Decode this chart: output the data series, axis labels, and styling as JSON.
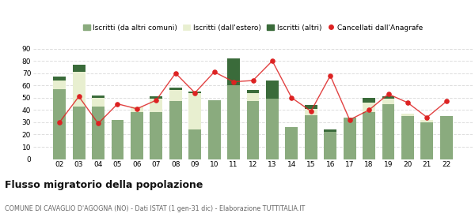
{
  "years": [
    "02",
    "03",
    "04",
    "05",
    "06",
    "07",
    "08",
    "09",
    "10",
    "11",
    "12",
    "13",
    "14",
    "15",
    "16",
    "17",
    "18",
    "19",
    "20",
    "21",
    "22"
  ],
  "iscritti_altri_comuni": [
    57,
    43,
    43,
    32,
    38,
    38,
    47,
    24,
    48,
    60,
    47,
    49,
    26,
    36,
    22,
    34,
    38,
    45,
    35,
    30,
    35
  ],
  "iscritti_estero": [
    7,
    28,
    7,
    0,
    5,
    11,
    9,
    30,
    0,
    0,
    7,
    0,
    0,
    5,
    0,
    0,
    8,
    4,
    2,
    2,
    0
  ],
  "iscritti_altri": [
    3,
    6,
    2,
    0,
    0,
    2,
    2,
    1,
    0,
    22,
    2,
    15,
    0,
    3,
    2,
    0,
    4,
    2,
    0,
    0,
    0
  ],
  "cancellati": [
    30,
    51,
    29,
    45,
    41,
    48,
    70,
    54,
    71,
    63,
    64,
    80,
    50,
    39,
    68,
    32,
    40,
    53,
    46,
    34,
    47
  ],
  "color_altri_comuni": "#8aab7e",
  "color_estero": "#e8efd0",
  "color_altri": "#3a6b3a",
  "color_cancellati": "#dd2222",
  "ylim": [
    0,
    90
  ],
  "yticks": [
    0,
    10,
    20,
    30,
    40,
    50,
    60,
    70,
    80,
    90
  ],
  "title": "Flusso migratorio della popolazione",
  "subtitle": "COMUNE DI CAVAGLIO D'AGOGNA (NO) - Dati ISTAT (1 gen-31 dic) - Elaborazione TUTTITALIA.IT",
  "legend_labels": [
    "Iscritti (da altri comuni)",
    "Iscritti (dall'estero)",
    "Iscritti (altri)",
    "Cancellati dall'Anagrafe"
  ],
  "background_color": "#ffffff",
  "grid_color": "#dddddd"
}
